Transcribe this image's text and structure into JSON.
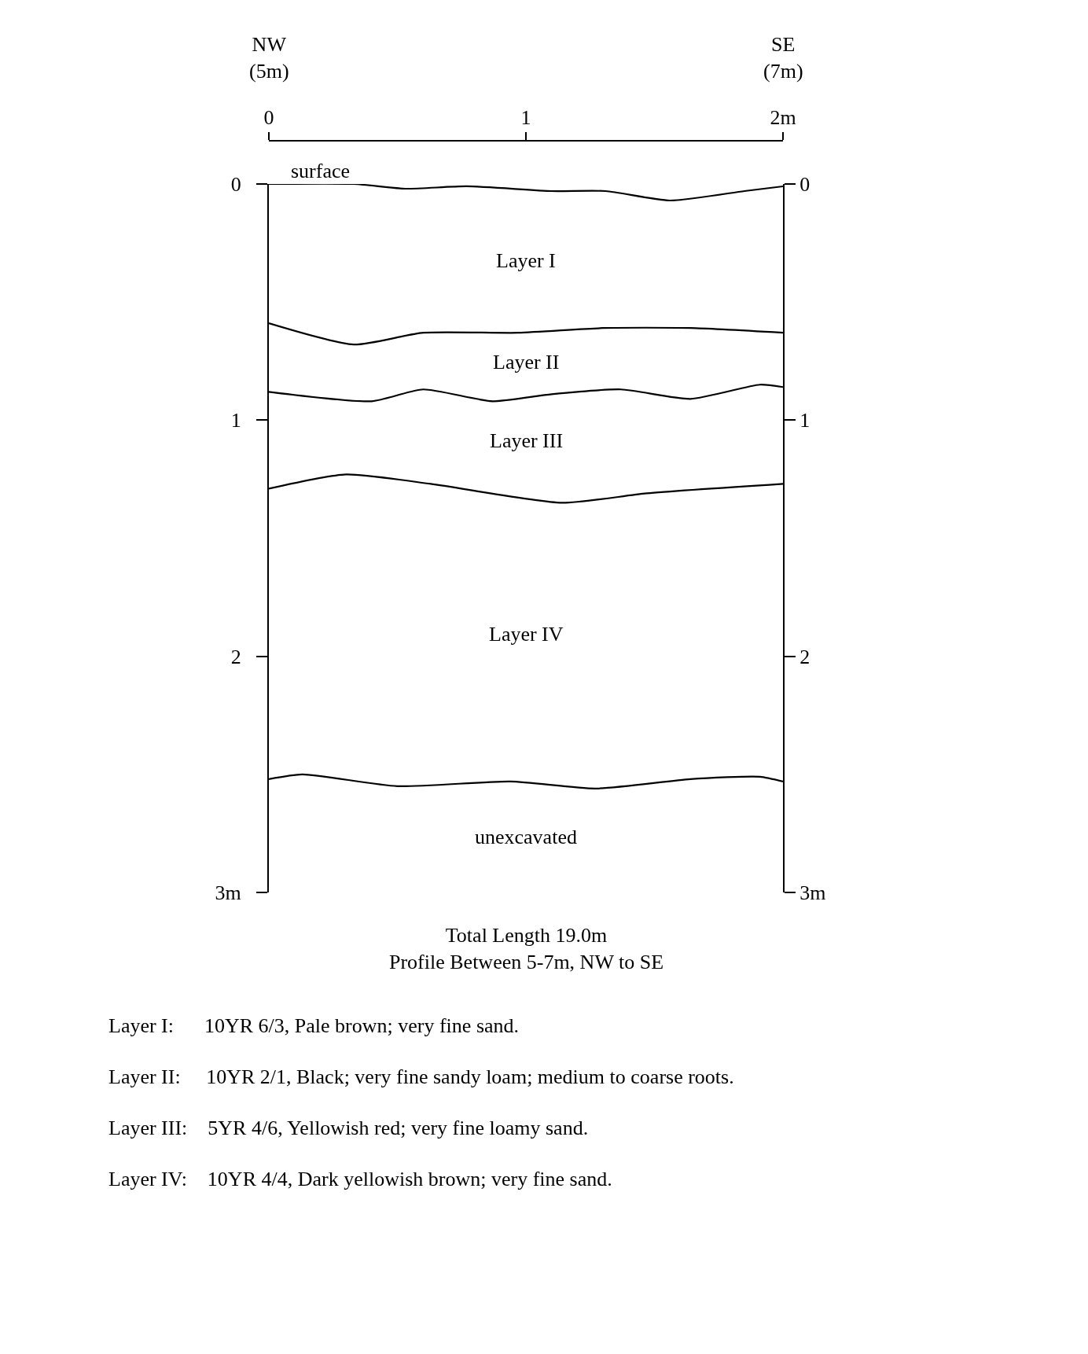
{
  "chart_data": {
    "type": "line",
    "line_style": "solid",
    "marker": "none",
    "grid": false,
    "series": [
      {
        "color": "#000000",
        "x": [
          0,
          0.33,
          0.53,
          0.77,
          1.1,
          1.31,
          1.56,
          1.85,
          2
        ],
        "values": [
          0,
          0,
          0.02,
          0.01,
          0.03,
          0.03,
          0.07,
          0.03,
          0.01
        ]
      },
      {
        "color": "#000000",
        "x": [
          0,
          0.33,
          0.6,
          0.97,
          1.3,
          1.64,
          2
        ],
        "values": [
          0.59,
          0.68,
          0.63,
          0.63,
          0.61,
          0.61,
          0.63
        ]
      },
      {
        "color": "#000000",
        "x": [
          0,
          0.4,
          0.6,
          0.87,
          1.1,
          1.37,
          1.64,
          1.91,
          2
        ],
        "values": [
          0.88,
          0.92,
          0.87,
          0.92,
          0.89,
          0.87,
          0.91,
          0.85,
          0.86
        ]
      },
      {
        "color": "#000000",
        "x": [
          0,
          0.3,
          0.63,
          1.14,
          1.47,
          2
        ],
        "values": [
          1.29,
          1.23,
          1.27,
          1.35,
          1.31,
          1.27
        ]
      },
      {
        "color": "#000000",
        "x": [
          0,
          0.13,
          0.5,
          0.94,
          1.27,
          1.64,
          1.91,
          2
        ],
        "values": [
          2.52,
          2.5,
          2.55,
          2.53,
          2.56,
          2.52,
          2.51,
          2.53
        ]
      }
    ],
    "xlim": [
      0,
      2
    ],
    "xticks": [
      0,
      1,
      {
        "value": 2,
        "label": "2m"
      }
    ],
    "ylim": [
      3,
      0
    ],
    "yticks": [
      0,
      1,
      2,
      {
        "value": 3,
        "label": "3m"
      }
    ],
    "y2lim": [
      3,
      0
    ],
    "y2ticks": [
      0,
      1,
      2,
      {
        "value": 3,
        "label": "3m"
      }
    ],
    "annotations": [
      {
        "text": "surface",
        "x": 0.2,
        "y": 0
      },
      "Layer I",
      "Layer II",
      "Layer III",
      "Layer IV",
      "unexcavated",
      "NW\n(5m)",
      "SE\n(7m)",
      "Total Length 19.0m\nProfile Between 5-7m, NW to SE",
      "Layer I:      10YR 6/3, Pale brown; very fine sand.",
      "Layer II:     10YR 2/1, Black; very fine sandy loam; medium to coarse roots.",
      "Layer III:    5YR 4/6, Yellowish red; very fine loamy sand.",
      "Layer IV:    10YR 4/4, Dark yellowish brown; very fine sand."
    ]
  }
}
